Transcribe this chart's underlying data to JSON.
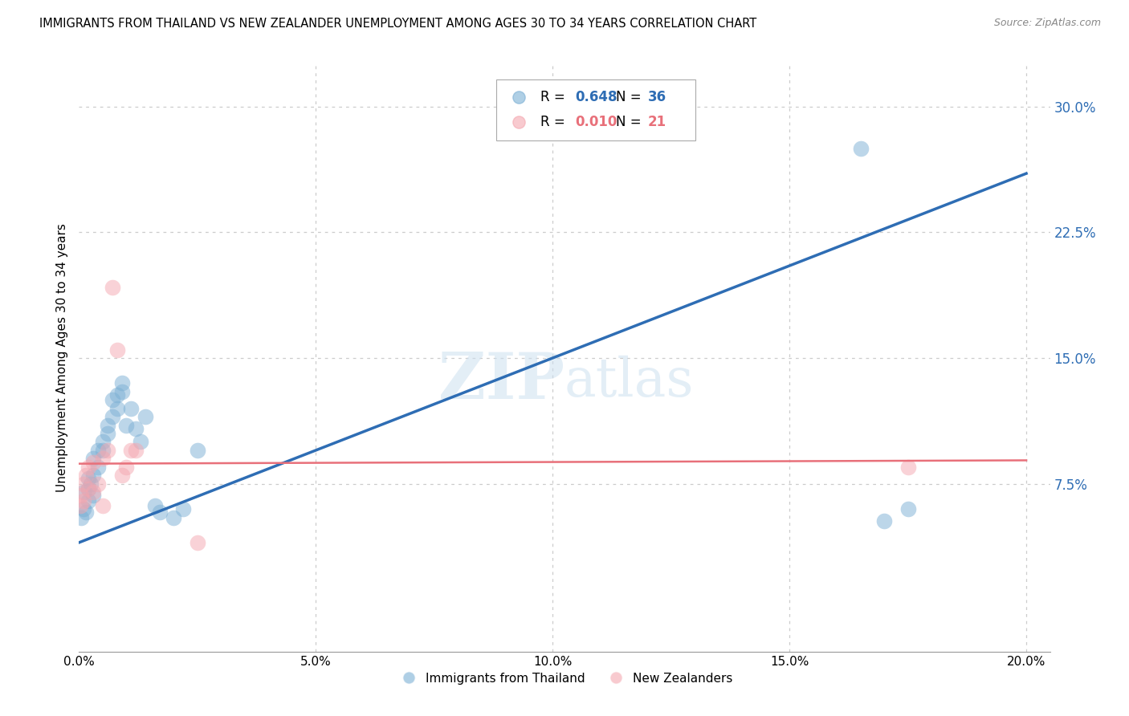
{
  "title": "IMMIGRANTS FROM THAILAND VS NEW ZEALANDER UNEMPLOYMENT AMONG AGES 30 TO 34 YEARS CORRELATION CHART",
  "source": "Source: ZipAtlas.com",
  "ylabel": "Unemployment Among Ages 30 to 34 years",
  "xlim": [
    0.0,
    0.205
  ],
  "ylim": [
    -0.025,
    0.325
  ],
  "xticks": [
    0.0,
    0.05,
    0.1,
    0.15,
    0.2
  ],
  "yticks_right": [
    0.075,
    0.15,
    0.225,
    0.3
  ],
  "blue_R": 0.648,
  "blue_N": 36,
  "pink_R": 0.01,
  "pink_N": 21,
  "blue_color": "#7BAFD4",
  "pink_color": "#F4A7B0",
  "blue_line_color": "#2E6DB4",
  "pink_line_color": "#E8707A",
  "watermark_zip": "ZIP",
  "watermark_atlas": "atlas",
  "blue_scatter_x": [
    0.0005,
    0.001,
    0.001,
    0.0015,
    0.002,
    0.002,
    0.002,
    0.0025,
    0.003,
    0.003,
    0.003,
    0.004,
    0.004,
    0.005,
    0.005,
    0.006,
    0.006,
    0.007,
    0.007,
    0.008,
    0.008,
    0.009,
    0.009,
    0.01,
    0.011,
    0.012,
    0.013,
    0.014,
    0.016,
    0.017,
    0.02,
    0.022,
    0.025,
    0.165,
    0.17,
    0.175
  ],
  "blue_scatter_y": [
    0.055,
    0.06,
    0.07,
    0.058,
    0.072,
    0.078,
    0.065,
    0.075,
    0.068,
    0.08,
    0.09,
    0.085,
    0.095,
    0.1,
    0.095,
    0.11,
    0.105,
    0.125,
    0.115,
    0.128,
    0.12,
    0.135,
    0.13,
    0.11,
    0.12,
    0.108,
    0.1,
    0.115,
    0.062,
    0.058,
    0.055,
    0.06,
    0.095,
    0.275,
    0.053,
    0.06
  ],
  "pink_scatter_x": [
    0.0003,
    0.0005,
    0.001,
    0.001,
    0.0015,
    0.002,
    0.002,
    0.003,
    0.003,
    0.004,
    0.005,
    0.005,
    0.006,
    0.007,
    0.008,
    0.009,
    0.01,
    0.011,
    0.012,
    0.025,
    0.175
  ],
  "pink_scatter_y": [
    0.062,
    0.068,
    0.065,
    0.075,
    0.08,
    0.072,
    0.085,
    0.07,
    0.088,
    0.075,
    0.062,
    0.09,
    0.095,
    0.192,
    0.155,
    0.08,
    0.085,
    0.095,
    0.095,
    0.04,
    0.085
  ],
  "blue_line_x": [
    0.0,
    0.2
  ],
  "blue_line_y": [
    0.04,
    0.26
  ],
  "pink_line_x": [
    0.0,
    0.2
  ],
  "pink_line_y": [
    0.087,
    0.089
  ]
}
